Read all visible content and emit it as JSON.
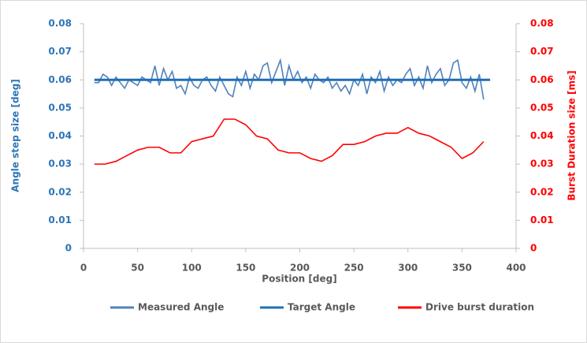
{
  "chart_data": {
    "type": "line",
    "xlabel": "Position [deg]",
    "ylabel": "Angle step size [deg]",
    "y2label": "Burst Duration size [ms]",
    "xlim": [
      0,
      400
    ],
    "xticks": [
      0,
      50,
      100,
      150,
      200,
      250,
      300,
      350,
      400
    ],
    "ylim": [
      0,
      0.08
    ],
    "yticks": [
      0,
      0.01,
      0.02,
      0.03,
      0.04,
      0.05,
      0.06,
      0.07,
      0.08
    ],
    "y2lim": [
      0,
      0.08
    ],
    "y2ticks": [
      0,
      0.01,
      0.02,
      0.03,
      0.04,
      0.05,
      0.06,
      0.07,
      0.08
    ],
    "grid": false,
    "legend": "bottom",
    "series": [
      {
        "name": "Measured Angle",
        "color": "#4f81bd",
        "axis": "y",
        "x": [
          10,
          14,
          18,
          22,
          26,
          30,
          34,
          38,
          42,
          46,
          50,
          54,
          58,
          62,
          66,
          70,
          74,
          78,
          82,
          86,
          90,
          94,
          98,
          102,
          106,
          110,
          114,
          118,
          122,
          126,
          130,
          134,
          138,
          142,
          146,
          150,
          154,
          158,
          162,
          166,
          170,
          174,
          178,
          182,
          186,
          190,
          194,
          198,
          202,
          206,
          210,
          214,
          218,
          222,
          226,
          230,
          234,
          238,
          242,
          246,
          250,
          254,
          258,
          262,
          266,
          270,
          274,
          278,
          282,
          286,
          290,
          294,
          298,
          302,
          306,
          310,
          314,
          318,
          322,
          326,
          330,
          334,
          338,
          342,
          346,
          350,
          354,
          358,
          362,
          366,
          370
        ],
        "values": [
          0.059,
          0.059,
          0.062,
          0.061,
          0.058,
          0.061,
          0.059,
          0.057,
          0.06,
          0.059,
          0.058,
          0.061,
          0.06,
          0.059,
          0.065,
          0.058,
          0.064,
          0.06,
          0.063,
          0.057,
          0.058,
          0.055,
          0.061,
          0.058,
          0.057,
          0.06,
          0.061,
          0.058,
          0.056,
          0.061,
          0.058,
          0.055,
          0.054,
          0.061,
          0.058,
          0.063,
          0.057,
          0.062,
          0.06,
          0.065,
          0.066,
          0.059,
          0.063,
          0.067,
          0.058,
          0.065,
          0.06,
          0.063,
          0.059,
          0.061,
          0.057,
          0.062,
          0.06,
          0.059,
          0.061,
          0.057,
          0.059,
          0.056,
          0.058,
          0.055,
          0.06,
          0.058,
          0.062,
          0.055,
          0.061,
          0.059,
          0.063,
          0.056,
          0.061,
          0.058,
          0.06,
          0.059,
          0.062,
          0.064,
          0.058,
          0.061,
          0.057,
          0.065,
          0.059,
          0.062,
          0.064,
          0.058,
          0.06,
          0.066,
          0.067,
          0.059,
          0.057,
          0.061,
          0.056,
          0.062,
          0.053
        ]
      },
      {
        "name": "Target Angle",
        "color": "#1f6fb5",
        "axis": "y",
        "x": [
          10,
          376
        ],
        "values": [
          0.06,
          0.06
        ]
      },
      {
        "name": "Drive burst duration",
        "color": "#ff0000",
        "axis": "y2",
        "x": [
          10,
          20,
          30,
          40,
          50,
          60,
          70,
          80,
          90,
          100,
          110,
          120,
          130,
          140,
          150,
          160,
          170,
          180,
          190,
          200,
          210,
          220,
          230,
          240,
          250,
          260,
          270,
          280,
          290,
          300,
          310,
          320,
          330,
          340,
          350,
          360,
          370
        ],
        "values": [
          0.03,
          0.03,
          0.031,
          0.033,
          0.035,
          0.036,
          0.036,
          0.034,
          0.034,
          0.038,
          0.039,
          0.04,
          0.046,
          0.046,
          0.044,
          0.04,
          0.039,
          0.035,
          0.034,
          0.034,
          0.032,
          0.031,
          0.033,
          0.037,
          0.037,
          0.038,
          0.04,
          0.041,
          0.041,
          0.043,
          0.041,
          0.04,
          0.038,
          0.036,
          0.032,
          0.034,
          0.038
        ]
      }
    ]
  }
}
